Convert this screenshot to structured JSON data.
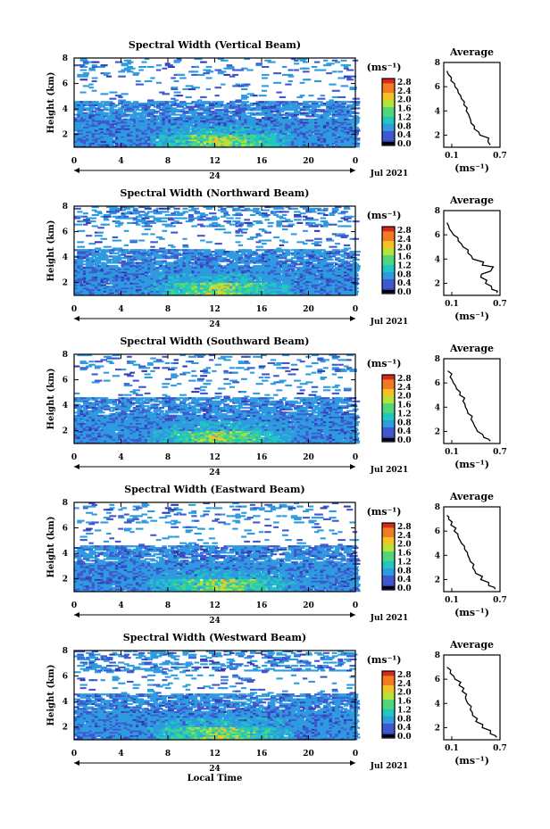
{
  "chart_data": [
    {
      "type": "heatmap",
      "title": "Spectral Width (Vertical Beam)",
      "ylabel": "Height (km)",
      "ylim": [
        1,
        8
      ],
      "yticks": [
        "2",
        "4",
        "6",
        "8"
      ],
      "xlim": [
        0,
        24
      ],
      "xticks": [
        "0",
        "4",
        "8",
        "12",
        "16",
        "20",
        "0"
      ],
      "day_label": "24",
      "date_label": "Jul 2021",
      "colorbar": {
        "unit": "(ms⁻¹)",
        "range": [
          0,
          2.8
        ],
        "ticks": [
          "2.8",
          "2.4",
          "2.0",
          "1.6",
          "1.2",
          "0.8",
          "0.4",
          "0.0"
        ]
      },
      "average": {
        "title": "Average",
        "xlabel": "(ms⁻¹)",
        "xticks": [
          "0.1",
          "0.7"
        ],
        "xlim": [
          0,
          0.7
        ],
        "height_km": [
          1.2,
          1.5,
          2.0,
          2.5,
          3.0,
          3.5,
          4.0,
          4.5,
          5.0,
          5.5,
          6.0,
          6.5,
          7.0,
          7.3
        ],
        "width_ms": [
          0.58,
          0.55,
          0.45,
          0.38,
          0.34,
          0.32,
          0.28,
          0.25,
          0.22,
          0.18,
          0.14,
          0.09,
          0.06,
          0.04
        ]
      }
    },
    {
      "type": "heatmap",
      "title": "Spectral Width (Northward Beam)",
      "ylabel": "Height (km)",
      "ylim": [
        1,
        8
      ],
      "yticks": [
        "2",
        "4",
        "6",
        "8"
      ],
      "xlim": [
        0,
        24
      ],
      "xticks": [
        "0",
        "4",
        "8",
        "12",
        "16",
        "20",
        "0"
      ],
      "day_label": "24",
      "date_label": "Jul 2021",
      "colorbar": {
        "unit": "(ms⁻¹)",
        "range": [
          0,
          2.8
        ],
        "ticks": [
          "2.8",
          "2.4",
          "2.0",
          "1.6",
          "1.2",
          "0.8",
          "0.4",
          "0.0"
        ]
      },
      "average": {
        "title": "Average",
        "xlabel": "(ms⁻¹)",
        "xticks": [
          "0.1",
          "0.7"
        ],
        "xlim": [
          0,
          0.7
        ],
        "height_km": [
          1.2,
          1.5,
          2.0,
          2.5,
          3.0,
          3.2,
          3.5,
          4.0,
          4.5,
          5.0,
          5.5,
          6.0,
          6.5,
          7.0
        ],
        "width_ms": [
          0.66,
          0.6,
          0.52,
          0.46,
          0.58,
          0.6,
          0.48,
          0.36,
          0.3,
          0.24,
          0.18,
          0.12,
          0.07,
          0.04
        ]
      }
    },
    {
      "type": "heatmap",
      "title": "Spectral Width (Southward Beam)",
      "ylabel": "Height (km)",
      "ylim": [
        1,
        8
      ],
      "yticks": [
        "2",
        "4",
        "6",
        "8"
      ],
      "xlim": [
        0,
        24
      ],
      "xticks": [
        "0",
        "4",
        "8",
        "12",
        "16",
        "20",
        "0"
      ],
      "day_label": "24",
      "date_label": "Jul 2021",
      "colorbar": {
        "unit": "(ms⁻¹)",
        "range": [
          0,
          2.8
        ],
        "ticks": [
          "2.8",
          "2.4",
          "2.0",
          "1.6",
          "1.2",
          "0.8",
          "0.4",
          "0.0"
        ]
      },
      "average": {
        "title": "Average",
        "xlabel": "(ms⁻¹)",
        "xticks": [
          "0.1",
          "0.7"
        ],
        "xlim": [
          0,
          0.7
        ],
        "height_km": [
          1.2,
          1.5,
          2.0,
          2.5,
          3.0,
          3.5,
          4.0,
          4.5,
          5.0,
          5.5,
          6.0,
          6.5,
          7.0
        ],
        "width_ms": [
          0.58,
          0.5,
          0.42,
          0.38,
          0.34,
          0.3,
          0.27,
          0.24,
          0.2,
          0.16,
          0.12,
          0.08,
          0.05
        ]
      }
    },
    {
      "type": "heatmap",
      "title": "Spectral Width (Eastward Beam)",
      "ylabel": "Height (km)",
      "ylim": [
        1,
        8
      ],
      "yticks": [
        "2",
        "4",
        "6",
        "8"
      ],
      "xlim": [
        0,
        24
      ],
      "xticks": [
        "0",
        "4",
        "8",
        "12",
        "16",
        "20",
        "0"
      ],
      "day_label": "24",
      "date_label": "Jul 2021",
      "colorbar": {
        "unit": "(ms⁻¹)",
        "range": [
          0,
          2.8
        ],
        "ticks": [
          "2.8",
          "2.4",
          "2.0",
          "1.6",
          "1.2",
          "0.8",
          "0.4",
          "0.0"
        ]
      },
      "average": {
        "title": "Average",
        "xlabel": "(ms⁻¹)",
        "xticks": [
          "0.1",
          "0.7"
        ],
        "xlim": [
          0,
          0.7
        ],
        "height_km": [
          1.2,
          1.5,
          2.0,
          2.5,
          3.0,
          3.5,
          4.0,
          4.5,
          5.0,
          5.5,
          6.0,
          6.5,
          7.0,
          7.3
        ],
        "width_ms": [
          0.64,
          0.56,
          0.46,
          0.4,
          0.36,
          0.33,
          0.3,
          0.26,
          0.22,
          0.18,
          0.13,
          0.09,
          0.06,
          0.04
        ]
      }
    },
    {
      "type": "heatmap",
      "title": "Spectral Width (Westward Beam)",
      "ylabel": "Height (km)",
      "ylim": [
        1,
        8
      ],
      "yticks": [
        "2",
        "4",
        "6",
        "8"
      ],
      "xlim": [
        0,
        24
      ],
      "xticks": [
        "0",
        "4",
        "8",
        "12",
        "16",
        "20",
        "0"
      ],
      "day_label": "24",
      "date_label": "Jul 2021",
      "xlabel": "Local Time",
      "colorbar": {
        "unit": "(ms⁻¹)",
        "range": [
          0,
          2.8
        ],
        "ticks": [
          "2.8",
          "2.4",
          "2.0",
          "1.6",
          "1.2",
          "0.8",
          "0.4",
          "0.0"
        ]
      },
      "average": {
        "title": "Average",
        "xlabel": "(ms⁻¹)",
        "xticks": [
          "0.1",
          "0.7"
        ],
        "xlim": [
          0,
          0.7
        ],
        "height_km": [
          1.2,
          1.5,
          2.0,
          2.5,
          3.0,
          3.5,
          4.0,
          4.5,
          5.0,
          5.5,
          6.0,
          6.5,
          7.0
        ],
        "width_ms": [
          0.66,
          0.58,
          0.48,
          0.4,
          0.36,
          0.33,
          0.3,
          0.27,
          0.23,
          0.19,
          0.14,
          0.08,
          0.04
        ]
      }
    }
  ],
  "colors": {
    "low": "#3a4cc0",
    "ramp": [
      "#2f3bb0",
      "#3f58d0",
      "#2e9be0",
      "#22c6c0",
      "#4fd67a",
      "#b5e23b",
      "#f2c226",
      "#f27a22",
      "#d6281e"
    ]
  }
}
